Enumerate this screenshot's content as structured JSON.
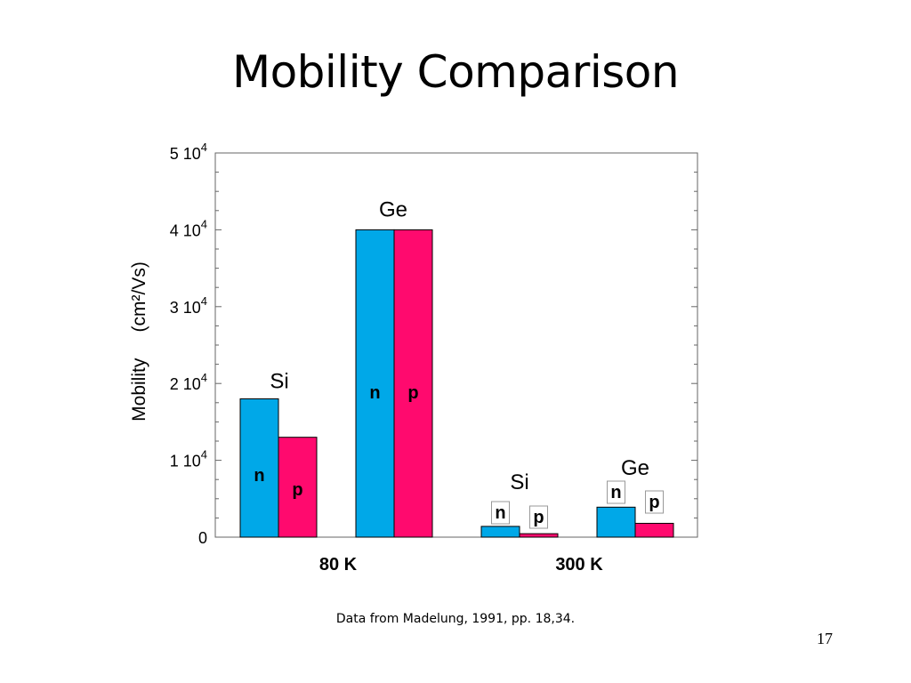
{
  "slide": {
    "title": "Mobility Comparison",
    "caption": "Data from Madelung, 1991, pp. 18,34.",
    "page_number": "17"
  },
  "colors": {
    "n_bar": "#00a8e8",
    "p_bar": "#ff0a6e"
  },
  "chart_data": {
    "type": "bar",
    "ylim": [
      0,
      50000
    ],
    "ylabel_left": "Mobility",
    "ylabel_unit": "(cm²/Vs)",
    "yticks": [
      {
        "value": 0,
        "label": "0"
      },
      {
        "value": 10000,
        "mantissa": "1 10",
        "exp": "4"
      },
      {
        "value": 20000,
        "mantissa": "2 10",
        "exp": "4"
      },
      {
        "value": 30000,
        "mantissa": "3 10",
        "exp": "4"
      },
      {
        "value": 40000,
        "mantissa": "4 10",
        "exp": "4"
      },
      {
        "value": 50000,
        "mantissa": "5 10",
        "exp": "4"
      }
    ],
    "groups": [
      {
        "label": "80 K",
        "materials": [
          {
            "material": "Si",
            "n": 18000,
            "p": 13000,
            "n_label": "n",
            "p_label": "p"
          },
          {
            "material": "Ge",
            "n": 40000,
            "p": 40000,
            "n_label": "n",
            "p_label": "p"
          }
        ]
      },
      {
        "label": "300 K",
        "materials": [
          {
            "material": "Si",
            "n": 1400,
            "p": 450,
            "n_label": "n",
            "p_label": "p"
          },
          {
            "material": "Ge",
            "n": 3900,
            "p": 1800,
            "n_label": "n",
            "p_label": "p"
          }
        ]
      }
    ]
  }
}
